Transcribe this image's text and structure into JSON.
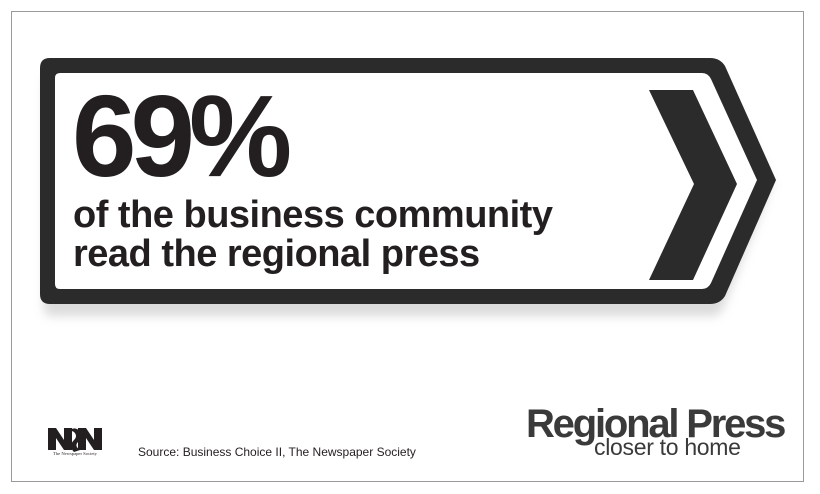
{
  "headline": {
    "percent": "69%",
    "line1": "of the business community",
    "line2": "read the regional press"
  },
  "footer": {
    "newspaper_society_caption": "The Newspaper Society",
    "source": "Source: Business Choice II, The Newspaper Society",
    "brand": "Regional Press",
    "tagline": "closer to home"
  },
  "icons": {
    "sign": "road-sign-arrow-icon",
    "logo": "newspaper-society-logo-icon"
  },
  "colors": {
    "dark": "#231f20",
    "border": "#2b2b2b",
    "shadow": "#c8c8c8",
    "brand_text": "#3a3a3a"
  }
}
